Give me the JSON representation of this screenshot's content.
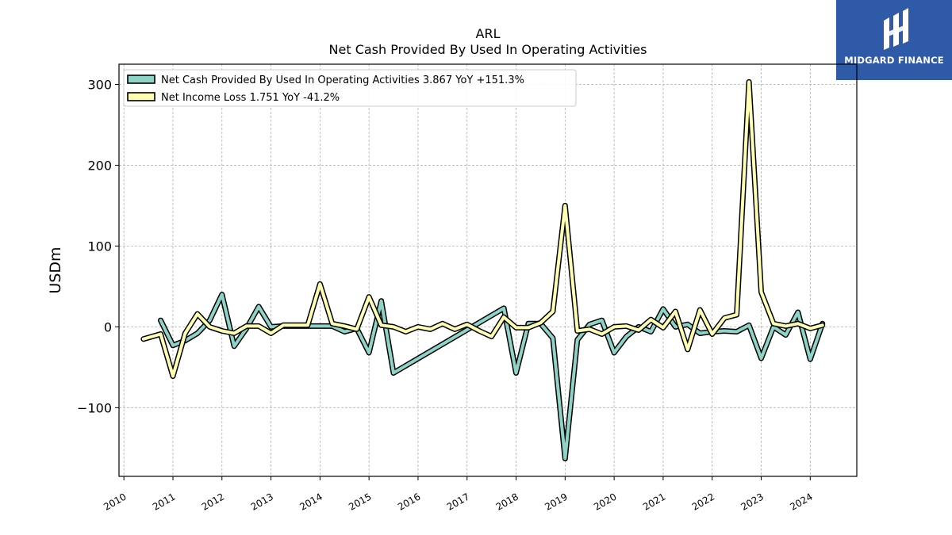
{
  "chart_data": {
    "type": "line",
    "title": "ARL",
    "subtitle": "Net Cash Provided By Used In Operating Activities",
    "ylabel": "USDm",
    "xlabel": "",
    "xlim": [
      2009.9,
      2024.95
    ],
    "ylim": [
      -185,
      325
    ],
    "yticks": [
      -100,
      0,
      100,
      200,
      300
    ],
    "yticklabels": [
      "−100",
      "0",
      "100",
      "200",
      "300"
    ],
    "xticks": [
      2010,
      2011,
      2012,
      2013,
      2014,
      2015,
      2016,
      2017,
      2018,
      2019,
      2020,
      2021,
      2022,
      2023,
      2024
    ],
    "xticklabels": [
      "2010",
      "2011",
      "2012",
      "2013",
      "2014",
      "2015",
      "2016",
      "2017",
      "2018",
      "2019",
      "2020",
      "2021",
      "2022",
      "2023",
      "2024"
    ],
    "grid": true,
    "legend_position": "top-left",
    "series": [
      {
        "name": "Net Cash Provided By Used In Operating Activities",
        "legend_label": "Net Cash Provided By Used In Operating Activities  3.867 YoY +151.3%",
        "color": "#8dd3c7",
        "points": [
          [
            2010.75,
            8
          ],
          [
            2011.0,
            -23
          ],
          [
            2011.25,
            -17
          ],
          [
            2011.5,
            -8
          ],
          [
            2011.75,
            8
          ],
          [
            2012.0,
            40
          ],
          [
            2012.25,
            -24
          ],
          [
            2012.5,
            -2
          ],
          [
            2012.75,
            25
          ],
          [
            2013.0,
            0
          ],
          [
            2013.25,
            1
          ],
          [
            2013.5,
            1
          ],
          [
            2013.75,
            1
          ],
          [
            2014.0,
            1
          ],
          [
            2014.25,
            1
          ],
          [
            2014.5,
            -6
          ],
          [
            2014.75,
            -2
          ],
          [
            2015.0,
            -32
          ],
          [
            2015.25,
            32
          ],
          [
            2015.5,
            -57
          ],
          [
            2017.75,
            23
          ],
          [
            2018.0,
            -57
          ],
          [
            2018.25,
            4
          ],
          [
            2018.5,
            4
          ],
          [
            2018.75,
            -14
          ],
          [
            2019.0,
            -163
          ],
          [
            2019.25,
            -16
          ],
          [
            2019.5,
            3
          ],
          [
            2019.75,
            8
          ],
          [
            2020.0,
            -32
          ],
          [
            2020.25,
            -12
          ],
          [
            2020.5,
            0
          ],
          [
            2020.75,
            -6
          ],
          [
            2021.0,
            22
          ],
          [
            2021.25,
            0
          ],
          [
            2021.5,
            3
          ],
          [
            2021.75,
            -8
          ],
          [
            2022.0,
            -6
          ],
          [
            2022.25,
            -5
          ],
          [
            2022.5,
            -6
          ],
          [
            2022.75,
            2
          ],
          [
            2023.0,
            -39
          ],
          [
            2023.25,
            0
          ],
          [
            2023.5,
            -10
          ],
          [
            2023.75,
            18
          ],
          [
            2024.0,
            -40
          ],
          [
            2024.25,
            4
          ]
        ]
      },
      {
        "name": "Net Income Loss",
        "legend_label": "Net Income Loss  1.751 YoY -41.2%",
        "color": "#ffffb3",
        "points": [
          [
            2010.4,
            -15
          ],
          [
            2010.75,
            -9
          ],
          [
            2011.0,
            -61
          ],
          [
            2011.25,
            -8
          ],
          [
            2011.5,
            16
          ],
          [
            2011.75,
            0
          ],
          [
            2012.0,
            -5
          ],
          [
            2012.25,
            -8
          ],
          [
            2012.5,
            1
          ],
          [
            2012.75,
            1
          ],
          [
            2013.0,
            -8
          ],
          [
            2013.25,
            2
          ],
          [
            2013.5,
            2
          ],
          [
            2013.75,
            2
          ],
          [
            2014.0,
            53
          ],
          [
            2014.25,
            4
          ],
          [
            2014.5,
            1
          ],
          [
            2014.75,
            -3
          ],
          [
            2015.0,
            37
          ],
          [
            2015.25,
            2
          ],
          [
            2015.5,
            0
          ],
          [
            2015.75,
            -6
          ],
          [
            2016.0,
            0
          ],
          [
            2016.25,
            -3
          ],
          [
            2016.5,
            4
          ],
          [
            2016.75,
            -3
          ],
          [
            2017.0,
            3
          ],
          [
            2017.25,
            -5
          ],
          [
            2017.5,
            -12
          ],
          [
            2017.75,
            12
          ],
          [
            2018.0,
            -1
          ],
          [
            2018.25,
            -1
          ],
          [
            2018.5,
            5
          ],
          [
            2018.75,
            19
          ],
          [
            2019.0,
            150
          ],
          [
            2019.25,
            -5
          ],
          [
            2019.5,
            -3
          ],
          [
            2019.75,
            -9
          ],
          [
            2020.0,
            0
          ],
          [
            2020.25,
            1
          ],
          [
            2020.5,
            -4
          ],
          [
            2020.75,
            9
          ],
          [
            2021.0,
            -1
          ],
          [
            2021.25,
            19
          ],
          [
            2021.5,
            -28
          ],
          [
            2021.75,
            21
          ],
          [
            2022.0,
            -9
          ],
          [
            2022.25,
            11
          ],
          [
            2022.5,
            15
          ],
          [
            2022.75,
            303
          ],
          [
            2023.0,
            43
          ],
          [
            2023.25,
            4
          ],
          [
            2023.5,
            1
          ],
          [
            2023.75,
            4
          ],
          [
            2024.0,
            -2
          ],
          [
            2024.25,
            2
          ]
        ]
      }
    ]
  },
  "brand": {
    "logo_text": "MIDGARD FINANCE",
    "logo_color": "#2f5aa8"
  }
}
